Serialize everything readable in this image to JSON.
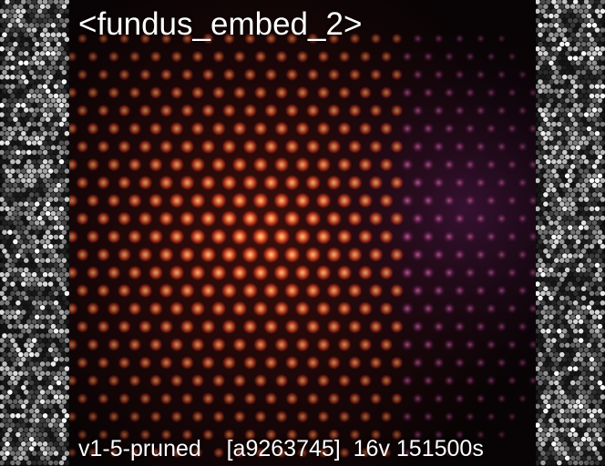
{
  "title": "<fundus_embed_2>",
  "footer": {
    "model": "v1-5-pruned",
    "hash": "[a9263745]",
    "vectors": "16v",
    "steps": "151500s"
  },
  "colors": {
    "background": "#0b0b0b",
    "panel": "#050304",
    "dot_warm": "#ff7a3c",
    "dot_cool": "#b04a88",
    "text": "#ffffff"
  }
}
